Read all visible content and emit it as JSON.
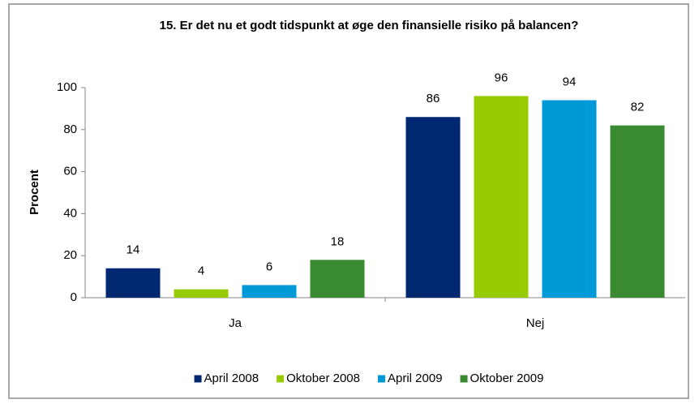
{
  "chart_data": {
    "type": "bar",
    "title": "15. Er det nu et godt tidspunkt at øge den finansielle risiko på balancen?",
    "y_label": "Procent",
    "categories": [
      "Ja",
      "Nej"
    ],
    "series": [
      {
        "name": "April 2008",
        "color": "#002870",
        "values": [
          14,
          86
        ]
      },
      {
        "name": "Oktober 2008",
        "color": "#99cc00",
        "values": [
          4,
          96
        ]
      },
      {
        "name": "April 2009",
        "color": "#0099d8",
        "values": [
          6,
          94
        ]
      },
      {
        "name": "Oktober 2009",
        "color": "#3a8a32",
        "values": [
          18,
          82
        ]
      }
    ],
    "ylim": [
      0,
      100
    ],
    "yticks": [
      0,
      20,
      40,
      60,
      80,
      100
    ],
    "grid": false,
    "legend": "bottom"
  }
}
